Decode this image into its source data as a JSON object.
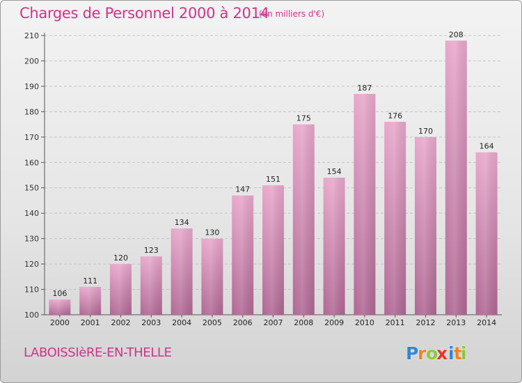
{
  "title": "Charges de Personnel 2000 à 2014",
  "subtitle": "(en milliers d'€)",
  "place": "LABOISSIèRE-EN-THELLE",
  "logo": {
    "text": "Proxiti",
    "letters": [
      "P",
      "r",
      "o",
      "x",
      "i",
      "t",
      "i"
    ]
  },
  "colors": {
    "title": "#d0338a",
    "bar_top": "#e8a8cc",
    "bar_bottom": "#b06894",
    "logo_letters": [
      "#2e86d8",
      "#f0821e",
      "#8cc63f",
      "#e8312f",
      "#2e86d8",
      "#f0821e",
      "#8cc63f"
    ]
  },
  "chart_data": {
    "type": "bar",
    "categories": [
      "2000",
      "2001",
      "2002",
      "2003",
      "2004",
      "2005",
      "2006",
      "2007",
      "2008",
      "2009",
      "2010",
      "2011",
      "2012",
      "2013",
      "2014"
    ],
    "values": [
      106,
      111,
      120,
      123,
      134,
      130,
      147,
      151,
      175,
      154,
      187,
      176,
      170,
      208,
      164
    ],
    "ylim": [
      100,
      210
    ],
    "yticks": [
      100,
      110,
      120,
      130,
      140,
      150,
      160,
      170,
      180,
      190,
      200,
      210
    ],
    "grid": true
  }
}
